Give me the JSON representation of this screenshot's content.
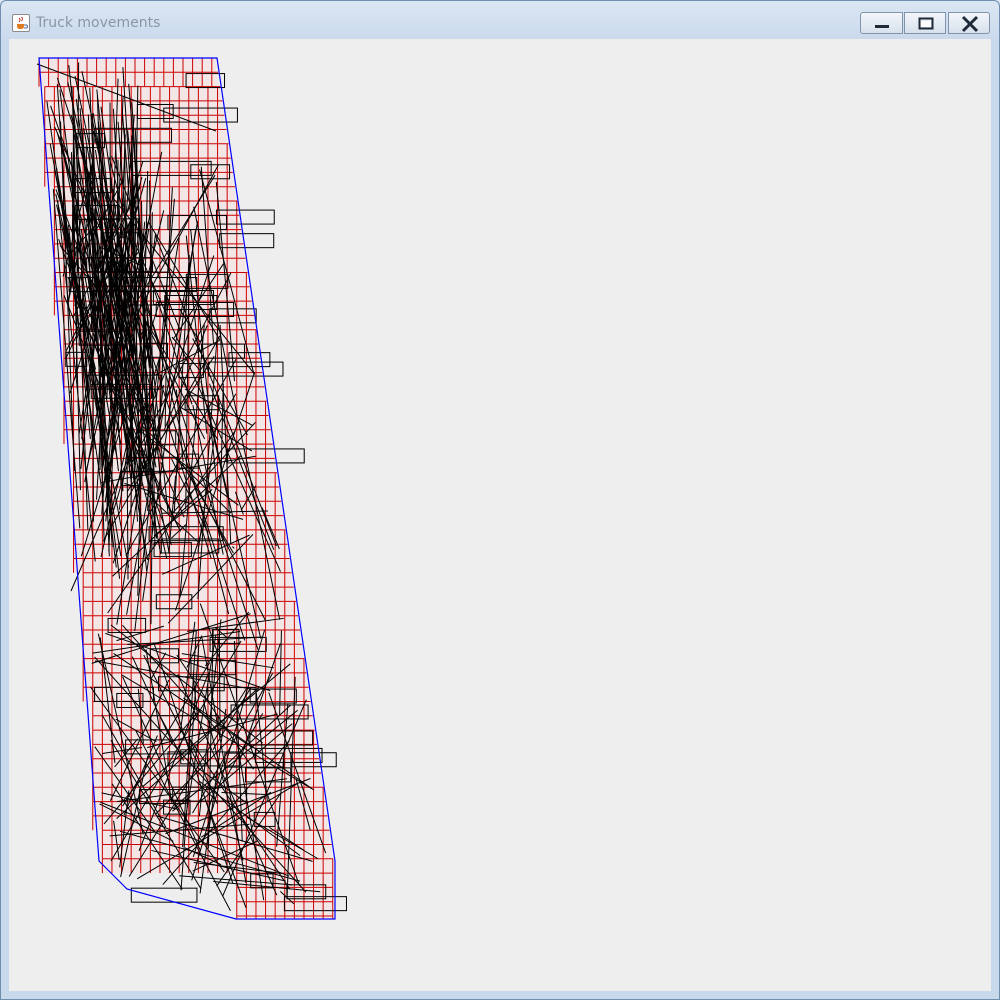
{
  "window": {
    "title": "Truck movements",
    "app_icon": "java-cup-icon",
    "controls": {
      "minimize_icon": "minimize-icon",
      "maximize_icon": "maximize-icon",
      "close_icon": "close-icon"
    }
  },
  "canvas": {
    "background": "#eeeeee",
    "colors": {
      "boundary": "#0000ff",
      "grid": "#cc0000",
      "block_fill": "#f3e6e6",
      "path": "#000000"
    },
    "icons": {
      "boundary": "site-boundary",
      "grid": "grid-lines",
      "paths": "truck-path-lines"
    }
  }
}
